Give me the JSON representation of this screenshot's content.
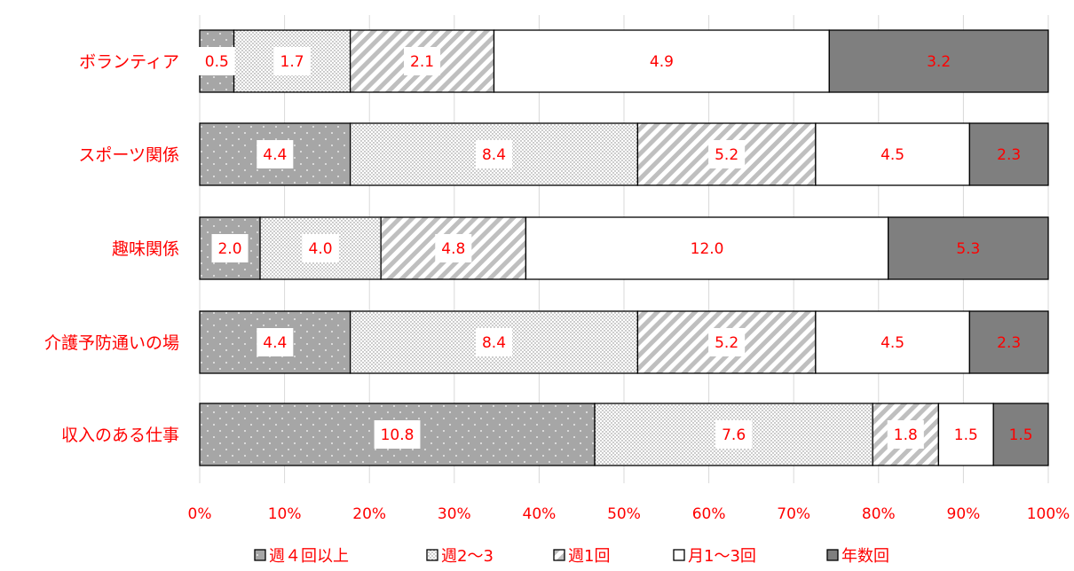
{
  "chart_data": {
    "type": "bar",
    "orientation": "horizontal",
    "stacked": "100%",
    "categories": [
      "ボランティア",
      "スポーツ関係",
      "趣味関係",
      "介護予防通いの場",
      "収入のある仕事"
    ],
    "series": [
      {
        "name": "週４回以上",
        "values": [
          0.5,
          4.4,
          2.0,
          4.4,
          10.8
        ],
        "pattern": "dots-gray"
      },
      {
        "name": "週2〜3",
        "values": [
          1.7,
          8.4,
          4.0,
          8.4,
          7.6
        ],
        "pattern": "fine-dots"
      },
      {
        "name": "週1回",
        "values": [
          2.1,
          5.2,
          4.8,
          5.2,
          1.8
        ],
        "pattern": "diagonal-stripes"
      },
      {
        "name": "月1〜3回",
        "values": [
          4.9,
          4.5,
          12.0,
          4.5,
          1.5
        ],
        "pattern": "white"
      },
      {
        "name": "年数回",
        "values": [
          3.2,
          2.3,
          5.3,
          2.3,
          1.5
        ],
        "pattern": "dark-gray"
      }
    ],
    "data_labels": [
      [
        "0.5",
        "4.4",
        "2.0",
        "4.4",
        "10.8"
      ],
      [
        "1.7",
        "8.4",
        "4.0",
        "8.4",
        "7.6"
      ],
      [
        "2.1",
        "5.2",
        "4.8",
        "5.2",
        "1.8"
      ],
      [
        "4.9",
        "4.5",
        "12.0",
        "4.5",
        "1.5"
      ],
      [
        "3.2",
        "2.3",
        "5.3",
        "2.3",
        "1.5"
      ]
    ],
    "x_ticks": [
      "0%",
      "10%",
      "20%",
      "30%",
      "40%",
      "50%",
      "60%",
      "70%",
      "80%",
      "90%",
      "100%"
    ],
    "xlim": [
      0,
      100
    ],
    "grid": "vertical",
    "legend_position": "bottom",
    "colors": {
      "text": "#ff0000",
      "gray_fill": "#a6a6a6",
      "dark_fill": "#7f7f7f",
      "stripe": "#bfbfbf",
      "border": "#000000",
      "grid": "#d9d9d9"
    }
  }
}
